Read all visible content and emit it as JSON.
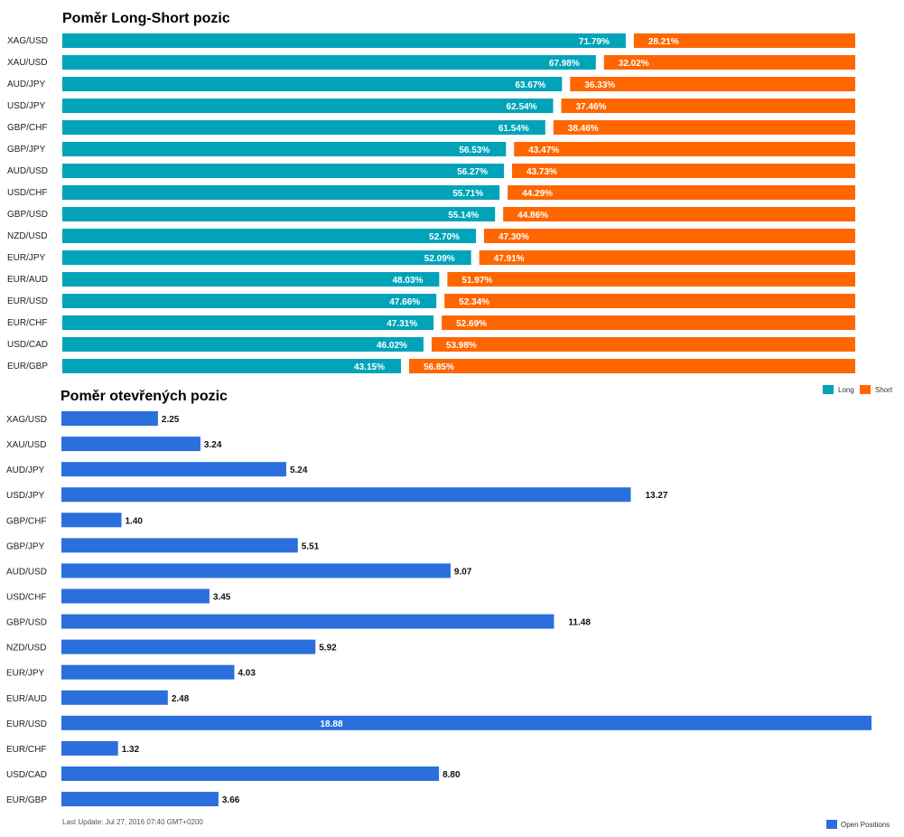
{
  "chart_data": [
    {
      "type": "bar",
      "stacked": "percent",
      "orientation": "horizontal",
      "title": "Poměr Long-Short pozic",
      "categories": [
        "XAG/USD",
        "XAU/USD",
        "AUD/JPY",
        "USD/JPY",
        "GBP/CHF",
        "GBP/JPY",
        "AUD/USD",
        "USD/CHF",
        "GBP/USD",
        "NZD/USD",
        "EUR/JPY",
        "EUR/AUD",
        "EUR/USD",
        "EUR/CHF",
        "USD/CAD",
        "EUR/GBP"
      ],
      "series": [
        {
          "name": "Long",
          "color": "#00a3b8",
          "values": [
            71.79,
            67.98,
            63.67,
            62.54,
            61.54,
            56.53,
            56.27,
            55.71,
            55.14,
            52.7,
            52.09,
            48.03,
            47.66,
            47.31,
            46.02,
            43.15
          ],
          "labels": [
            "71.79%",
            "67.98%",
            "63.67%",
            "62.54%",
            "61.54%",
            "56.53%",
            "56.27%",
            "55.71%",
            "55.14%",
            "52.70%",
            "52.09%",
            "48.03%",
            "47.66%",
            "47.31%",
            "46.02%",
            "43.15%"
          ]
        },
        {
          "name": "Short",
          "color": "#ff6600",
          "values": [
            28.21,
            32.02,
            36.33,
            37.46,
            38.46,
            43.47,
            43.73,
            44.29,
            44.86,
            47.3,
            47.91,
            51.97,
            52.34,
            52.69,
            53.98,
            56.85
          ],
          "labels": [
            "28.21%",
            "32.02%",
            "36.33%",
            "37.46%",
            "38.46%",
            "43.47%",
            "43.73%",
            "44.29%",
            "44.86%",
            "47.30%",
            "47.91%",
            "51.97%",
            "52.34%",
            "52.69%",
            "53.98%",
            "56.85%"
          ]
        }
      ],
      "legend": "bottom-right"
    },
    {
      "type": "bar",
      "orientation": "horizontal",
      "title": "Poměr otevřených pozic",
      "categories": [
        "XAG/USD",
        "XAU/USD",
        "AUD/JPY",
        "USD/JPY",
        "GBP/CHF",
        "GBP/JPY",
        "AUD/USD",
        "USD/CHF",
        "GBP/USD",
        "NZD/USD",
        "EUR/JPY",
        "EUR/AUD",
        "EUR/USD",
        "EUR/CHF",
        "USD/CAD",
        "EUR/GBP"
      ],
      "series": [
        {
          "name": "Open Positions",
          "color": "#2a6fdc",
          "values": [
            2.25,
            3.24,
            5.24,
            13.27,
            1.4,
            5.51,
            9.07,
            3.45,
            11.48,
            5.92,
            4.03,
            2.48,
            18.88,
            1.32,
            8.8,
            3.66
          ],
          "labels": [
            "2.25",
            "3.24",
            "5.24",
            "13.27",
            "1.40",
            "5.51",
            "9.07",
            "3.45",
            "11.48",
            "5.92",
            "4.03",
            "2.48",
            "18.88",
            "1.32",
            "8.80",
            "3.66"
          ]
        }
      ],
      "xlim": [
        0,
        18.88
      ],
      "legend": "bottom-right"
    }
  ],
  "footer": {
    "last_update": "Last Update: Jul 27, 2016 07:40 GMT+0200"
  }
}
